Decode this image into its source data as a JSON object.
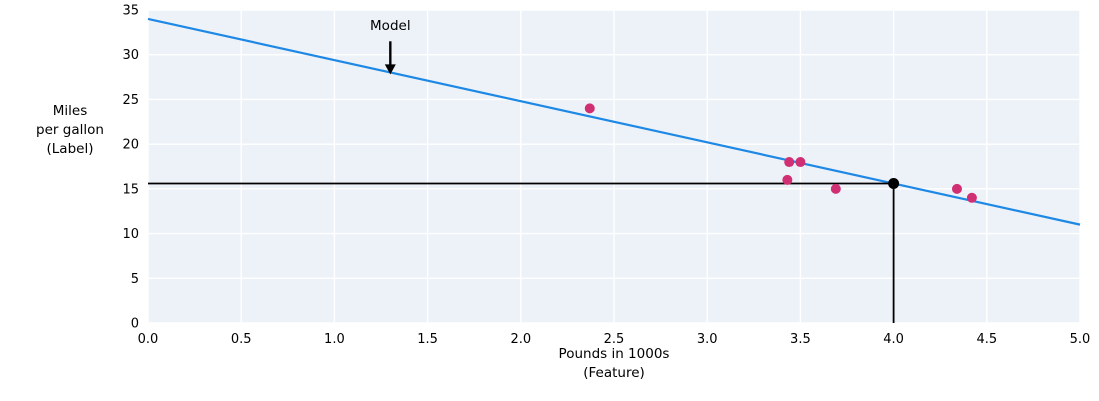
{
  "chart_data": {
    "type": "scatter",
    "title": "",
    "xlabel_lines": [
      "Pounds in 1000s",
      "(Feature)"
    ],
    "ylabel_lines": [
      "Miles",
      "per gallon",
      "(Label)"
    ],
    "xlim": [
      0.0,
      5.0
    ],
    "ylim": [
      0,
      35
    ],
    "xticks": {
      "values": [
        0.0,
        0.5,
        1.0,
        1.5,
        2.0,
        2.5,
        3.0,
        3.5,
        4.0,
        4.5,
        5.0
      ],
      "labels": [
        "0.0",
        "0.5",
        "1.0",
        "1.5",
        "2.0",
        "2.5",
        "3.0",
        "3.5",
        "4.0",
        "4.5",
        "5.0"
      ]
    },
    "yticks": {
      "values": [
        0,
        5,
        10,
        15,
        20,
        25,
        30,
        35
      ],
      "labels": [
        "0",
        "5",
        "10",
        "15",
        "20",
        "25",
        "30",
        "35"
      ]
    },
    "points": {
      "x": [
        2.37,
        3.43,
        3.44,
        3.5,
        3.69,
        4.34,
        4.42
      ],
      "y": [
        24,
        16,
        18,
        18,
        15,
        15,
        14
      ]
    },
    "model_line": {
      "x": [
        0.0,
        5.0
      ],
      "y": [
        34.0,
        11.0
      ]
    },
    "prediction": {
      "x": 4.0,
      "y": 15.6
    },
    "annotation": {
      "label": "Model",
      "text_x": 1.3,
      "text_y": 33.2,
      "arrow_x": 1.3,
      "arrow_y_from": 31.5,
      "arrow_y_to": 27.8
    },
    "grid": true,
    "legend": "none",
    "colors": {
      "plot_background": "#edf2f9",
      "grid": "#ffffff",
      "model_line": "#1e88e5",
      "points": "#d02f74",
      "prediction": "#000000",
      "text": "#000000"
    }
  }
}
